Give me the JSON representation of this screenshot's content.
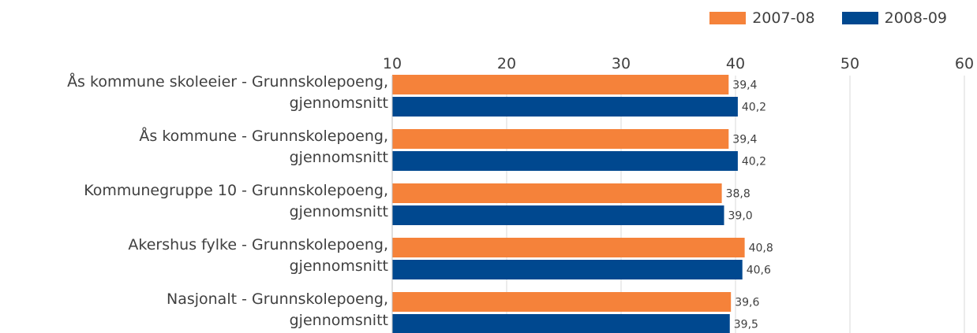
{
  "colors": {
    "series_1": "#F5823A",
    "series_2": "#00488F",
    "grid": "#D9D9D9",
    "text": "#404040"
  },
  "chart_data": {
    "type": "bar",
    "orientation": "horizontal",
    "title": "",
    "xlabel": "",
    "ylabel": "",
    "xlim": [
      10,
      60
    ],
    "xticks": [
      10,
      20,
      30,
      40,
      50,
      60
    ],
    "grid": true,
    "legend_position": "top-right",
    "categories": [
      {
        "line1": "Ås kommune skoleeier - Grunnskolepoeng,",
        "line2": "gjennomsnitt"
      },
      {
        "line1": "Ås kommune - Grunnskolepoeng,",
        "line2": "gjennomsnitt"
      },
      {
        "line1": "Kommunegruppe 10 - Grunnskolepoeng,",
        "line2": "gjennomsnitt"
      },
      {
        "line1": "Akershus fylke - Grunnskolepoeng,",
        "line2": "gjennomsnitt"
      },
      {
        "line1": "Nasjonalt - Grunnskolepoeng,",
        "line2": "gjennomsnitt"
      }
    ],
    "series": [
      {
        "name": "2007-08",
        "color": "#F5823A",
        "values": [
          39.4,
          39.4,
          38.8,
          40.8,
          39.6
        ],
        "labels": [
          "39,4",
          "39,4",
          "38,8",
          "40,8",
          "39,6"
        ]
      },
      {
        "name": "2008-09",
        "color": "#00488F",
        "values": [
          40.2,
          40.2,
          39.0,
          40.6,
          39.5
        ],
        "labels": [
          "40,2",
          "40,2",
          "39,0",
          "40,6",
          "39,5"
        ]
      }
    ]
  }
}
